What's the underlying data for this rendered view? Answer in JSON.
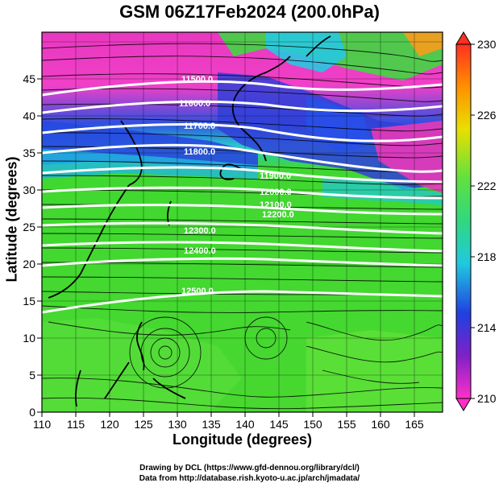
{
  "title": "GSM 06Z17Feb2024 (200.0hPa)",
  "axes": {
    "x_label": "Longitude (degrees)",
    "y_label": "Latitude  (degrees)",
    "x_ticks": [
      "110",
      "115",
      "120",
      "125",
      "130",
      "135",
      "140",
      "145",
      "150",
      "155",
      "160",
      "165"
    ],
    "y_ticks": [
      "0",
      "5",
      "10",
      "15",
      "20",
      "25",
      "30",
      "35",
      "40",
      "45"
    ]
  },
  "colorbar": {
    "labels": [
      "230",
      "226",
      "222",
      "218",
      "214",
      "210"
    ]
  },
  "contours": [
    {
      "label": "11500.0"
    },
    {
      "label": "11600.0"
    },
    {
      "label": "11700.0"
    },
    {
      "label": "11800.0"
    },
    {
      "label": "11900.0"
    },
    {
      "label": "12000.0"
    },
    {
      "label": "12100.0"
    },
    {
      "label": "12200.0"
    },
    {
      "label": "12300.0"
    },
    {
      "label": "12400.0"
    },
    {
      "label": "12500.0"
    }
  ],
  "credits": {
    "line1": "Drawing by DCL (https://www.gfd-dennou.org/library/dcl/)",
    "line2": "Data from http://database.rish.kyoto-u.ac.jp/arch/jmadata/"
  },
  "colors": {
    "magenta": "#ff30c8",
    "blue": "#2040e0",
    "cyan": "#20d0e0",
    "green": "#40d830",
    "light_green": "#70e840",
    "yellow": "#e8e000",
    "orange": "#ff9000",
    "red": "#ff3020"
  }
}
